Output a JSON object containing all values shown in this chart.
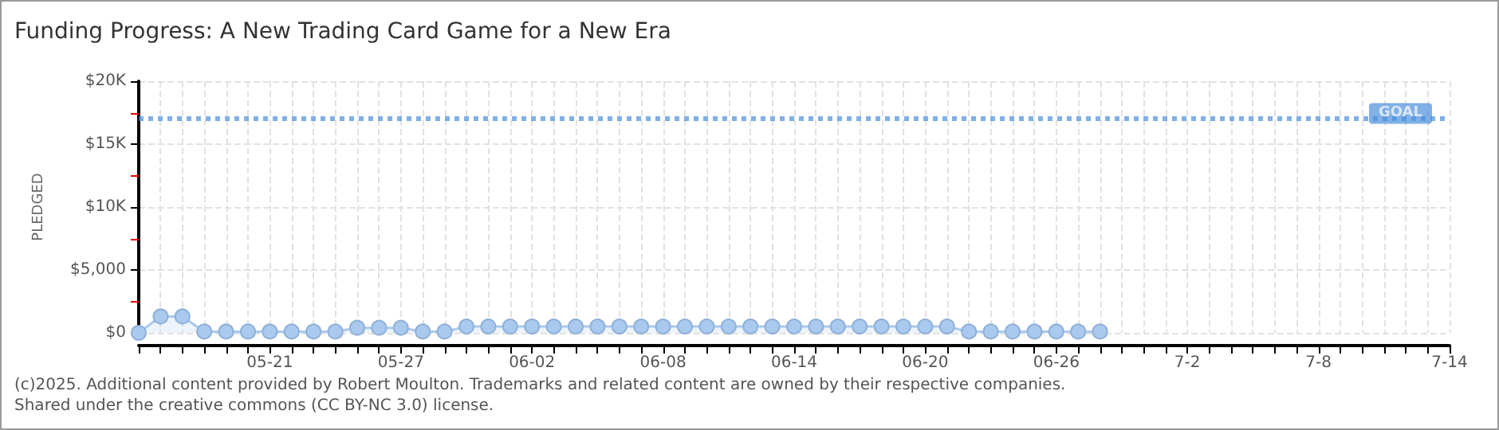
{
  "chart_data": {
    "type": "area",
    "title": "Funding Progress: A New Trading Card Game for a New Era",
    "ylabel": "PLEDGED",
    "categories": [
      null,
      null,
      null,
      null,
      null,
      null,
      "05-21",
      null,
      null,
      null,
      null,
      null,
      "05-27",
      null,
      null,
      null,
      null,
      null,
      "06-02",
      null,
      null,
      null,
      null,
      null,
      "06-08",
      null,
      null,
      null,
      null,
      null,
      "06-14",
      null,
      null,
      null,
      null,
      null,
      "06-20",
      null,
      null,
      null,
      null,
      null,
      "06-26",
      null,
      null,
      null,
      null,
      null,
      "7-2",
      null,
      null,
      null,
      null,
      null,
      "7-8",
      null,
      null,
      null,
      null,
      null,
      "7-14"
    ],
    "series": [
      {
        "color": "#a9c9ee",
        "values": [
          0,
          1300,
          1300,
          100,
          100,
          100,
          100,
          100,
          100,
          100,
          400,
          400,
          400,
          100,
          100,
          500,
          500,
          500,
          500,
          500,
          500,
          500,
          500,
          500,
          500,
          500,
          500,
          500,
          500,
          500,
          500,
          500,
          500,
          500,
          500,
          500,
          500,
          500,
          100,
          100,
          100,
          100,
          100,
          100,
          100,
          null,
          null,
          null,
          null,
          null,
          null,
          null,
          null,
          null,
          null,
          null,
          null,
          null,
          null,
          null,
          null
        ]
      }
    ],
    "ylim": [
      0,
      20000
    ],
    "yticks": [
      {
        "value": 0,
        "label": "$0"
      },
      {
        "value": 2500,
        "label": null
      },
      {
        "value": 5000,
        "label": "$5,000"
      },
      {
        "value": 7500,
        "label": null
      },
      {
        "value": 10000,
        "label": "$10K"
      },
      {
        "value": 12500,
        "label": null
      },
      {
        "value": 15000,
        "label": "$15K"
      },
      {
        "value": 17500,
        "label": null
      },
      {
        "value": 20000,
        "label": "$20K"
      }
    ],
    "ref_lines": [
      {
        "axis": "y",
        "value": 17000,
        "label": "GOAL",
        "color": "#4a8fdc",
        "line_style": "dotted"
      }
    ],
    "annotations": [
      "(c)2025. Additional content provided by Robert Moulton. Trademarks and related content are owned by their respective companies.",
      "Shared under the creative commons (CC BY-NC 3.0) license."
    ],
    "grid": true,
    "marker": "circle",
    "line_style": "solid"
  }
}
